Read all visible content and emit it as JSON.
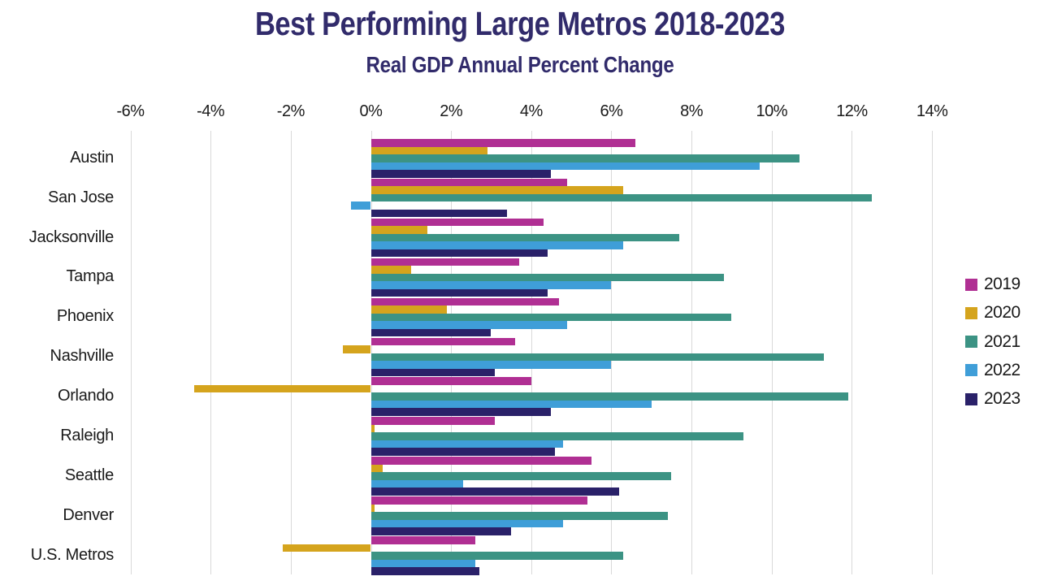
{
  "title": "Best Performing Large Metros 2018-2023",
  "subtitle": "Real GDP Annual Percent Change",
  "colors": {
    "background": "#ffffff",
    "title": "#312b6b",
    "axis_text": "#1a1a1a",
    "gridline": "#d9d9d9"
  },
  "chart_data": {
    "type": "bar",
    "orientation": "horizontal",
    "title": "Best Performing Large Metros 2018-2023",
    "subtitle": "Real GDP Annual Percent Change",
    "units": "%",
    "grid": true,
    "legend_position": "right",
    "xlim": [
      -6,
      14
    ],
    "x_tick_labels": [
      "-6%",
      "-4%",
      "-2%",
      "0%",
      "2%",
      "4%",
      "6%",
      "8%",
      "10%",
      "12%",
      "14%"
    ],
    "x_tick_values": [
      -6,
      -4,
      -2,
      0,
      2,
      4,
      6,
      8,
      10,
      12,
      14
    ],
    "categories": [
      "Austin",
      "San Jose",
      "Jacksonville",
      "Tampa",
      "Phoenix",
      "Nashville",
      "Orlando",
      "Raleigh",
      "Seattle",
      "Denver",
      "U.S. Metros"
    ],
    "series": [
      {
        "name": "2019",
        "color": "#b02f93",
        "values": [
          6.6,
          4.9,
          4.3,
          3.7,
          4.7,
          3.6,
          4.0,
          3.1,
          5.5,
          5.4,
          2.6
        ]
      },
      {
        "name": "2020",
        "color": "#d5a41d",
        "values": [
          2.9,
          6.3,
          1.4,
          1.0,
          1.9,
          -0.7,
          -4.4,
          0.1,
          0.3,
          0.1,
          -2.2
        ]
      },
      {
        "name": "2021",
        "color": "#3c9384",
        "values": [
          10.7,
          12.5,
          7.7,
          8.8,
          9.0,
          11.3,
          11.9,
          9.3,
          7.5,
          7.4,
          6.3
        ]
      },
      {
        "name": "2022",
        "color": "#3f9ed8",
        "values": [
          9.7,
          -0.5,
          6.3,
          6.0,
          4.9,
          6.0,
          7.0,
          4.8,
          2.3,
          4.8,
          2.6
        ]
      },
      {
        "name": "2023",
        "color": "#2a2169",
        "values": [
          4.5,
          3.4,
          4.4,
          4.4,
          3.0,
          3.1,
          4.5,
          4.6,
          6.2,
          3.5,
          2.7
        ]
      }
    ]
  }
}
